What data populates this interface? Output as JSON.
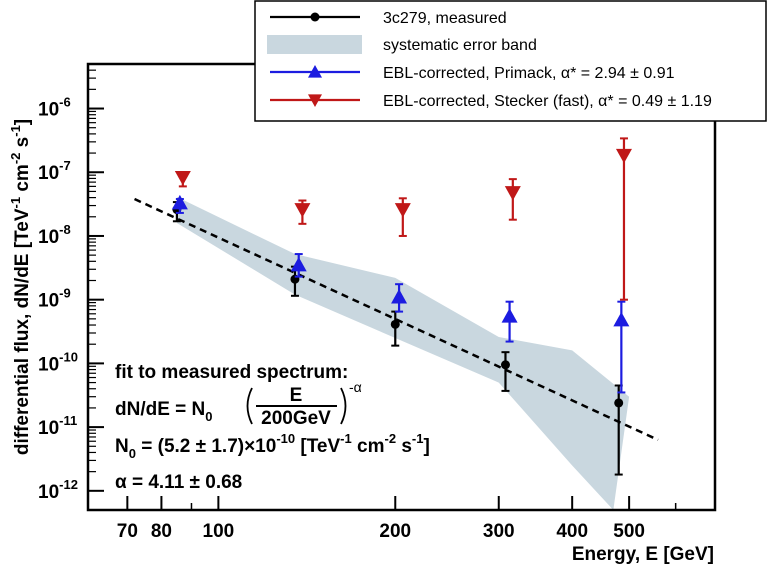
{
  "chart_data": {
    "type": "scatter",
    "title": "",
    "xlabel": "Energy, E [GeV]",
    "ylabel": "differential flux, dN/dE [TeV",
    "ylabel_sup1": "-1",
    "ylabel_mid": " cm",
    "ylabel_sup2": "-2",
    "ylabel_mid2": " s",
    "ylabel_sup3": "-1",
    "ylabel_end": "]",
    "xscale": "log",
    "yscale": "log",
    "xlim": [
      60,
      700
    ],
    "ylim": [
      5e-13,
      5e-06
    ],
    "x_ticks": [
      {
        "value": 70,
        "label": "70"
      },
      {
        "value": 80,
        "label": "80"
      },
      {
        "value": 100,
        "label": "100"
      },
      {
        "value": 200,
        "label": "200"
      },
      {
        "value": 300,
        "label": "300"
      },
      {
        "value": 400,
        "label": "400"
      },
      {
        "value": 500,
        "label": "500"
      }
    ],
    "y_ticks": [
      {
        "value": 1e-12,
        "base": "10",
        "exp": "-12"
      },
      {
        "value": 1e-11,
        "base": "10",
        "exp": "-11"
      },
      {
        "value": 1e-10,
        "base": "10",
        "exp": "-10"
      },
      {
        "value": 1e-09,
        "base": "10",
        "exp": "-9"
      },
      {
        "value": 1e-08,
        "base": "10",
        "exp": "-8"
      },
      {
        "value": 1e-07,
        "base": "10",
        "exp": "-7"
      },
      {
        "value": 1e-06,
        "base": "10",
        "exp": "-6"
      }
    ],
    "legend_position": "top-right",
    "series": [
      {
        "name": "3c279, measured",
        "marker": "circle",
        "color": "#000000",
        "points": [
          {
            "x": 85,
            "y": 2.6e-08,
            "ylow": 1.7e-08,
            "yhigh": 3.4e-08
          },
          {
            "x": 135,
            "y": 2.1e-09,
            "ylow": 1.15e-09,
            "yhigh": 3.3e-09
          },
          {
            "x": 200,
            "y": 4.1e-10,
            "ylow": 1.9e-10,
            "yhigh": 6.5e-10
          },
          {
            "x": 308,
            "y": 9.5e-11,
            "ylow": 3.7e-11,
            "yhigh": 1.5e-10
          },
          {
            "x": 480,
            "y": 2.4e-11,
            "ylow": 1.8e-12,
            "yhigh": 4.5e-11
          }
        ]
      },
      {
        "name": "systematic error band",
        "type": "band",
        "color": "#c9d7df",
        "upper": [
          [
            85,
            4.1e-08
          ],
          [
            135,
            5.2e-09
          ],
          [
            200,
            2.2e-09
          ],
          [
            300,
            2.6e-10
          ],
          [
            400,
            1.6e-10
          ],
          [
            500,
            3e-11
          ]
        ],
        "lower": [
          [
            85,
            1.6e-08
          ],
          [
            135,
            1.2e-09
          ],
          [
            200,
            2.5e-10
          ],
          [
            300,
            5e-11
          ],
          [
            400,
            2.5e-12
          ],
          [
            470,
            5e-13
          ]
        ]
      },
      {
        "name": "EBL-corrected,  Primack, α* = 2.94 ± 0.91",
        "marker": "triangle-up",
        "color": "#1c1ce0",
        "points": [
          {
            "x": 86,
            "y": 3.3e-08,
            "ylow": 2.3e-08,
            "yhigh": 3.8e-08
          },
          {
            "x": 137,
            "y": 3.5e-09,
            "ylow": 2.3e-09,
            "yhigh": 5.2e-09
          },
          {
            "x": 203,
            "y": 1.1e-09,
            "ylow": 6.5e-10,
            "yhigh": 1.75e-09
          },
          {
            "x": 313,
            "y": 5.5e-10,
            "ylow": 2.2e-10,
            "yhigh": 9.3e-10
          },
          {
            "x": 485,
            "y": 4.8e-10,
            "ylow": 3.5e-11,
            "yhigh": 9.3e-10
          }
        ]
      },
      {
        "name": "EBL-corrected, Stecker (fast), α* = 0.49 ± 1.19",
        "marker": "triangle-down",
        "color": "#c01818",
        "points": [
          {
            "x": 87,
            "y": 8.3e-08,
            "ylow": 6e-08,
            "yhigh": 9.8e-08
          },
          {
            "x": 139,
            "y": 2.6e-08,
            "ylow": 1.55e-08,
            "yhigh": 3.6e-08
          },
          {
            "x": 206,
            "y": 2.6e-08,
            "ylow": 1e-08,
            "yhigh": 3.9e-08
          },
          {
            "x": 317,
            "y": 4.8e-08,
            "ylow": 1.8e-08,
            "yhigh": 7.8e-08
          },
          {
            "x": 490,
            "y": 1.85e-07,
            "ylow": 1e-09,
            "yhigh": 3.4e-07
          }
        ]
      },
      {
        "name": "fit",
        "type": "line",
        "style": "dashed",
        "color": "#000000",
        "x": [
          72,
          560
        ],
        "y": [
          3.8e-08,
          6.3e-12
        ]
      }
    ],
    "annotation": {
      "line1": "fit to measured spectrum:",
      "line2_a": "dN/dE = N",
      "line2_sub": "0",
      "line2_frac_top": "E",
      "line2_frac_bottom": "200GeV",
      "line2_exp": "-α",
      "line3_a": "N",
      "line3_sub": "0",
      "line3_b": " = (5.2 ± 1.7)×10",
      "line3_exp1": "-10",
      "line3_c": " [TeV",
      "line3_exp2": "-1",
      "line3_d": " cm",
      "line3_exp3": "-2",
      "line3_e": " s",
      "line3_exp4": "-1",
      "line3_f": "]",
      "line4": "α = 4.11 ± 0.68"
    }
  }
}
